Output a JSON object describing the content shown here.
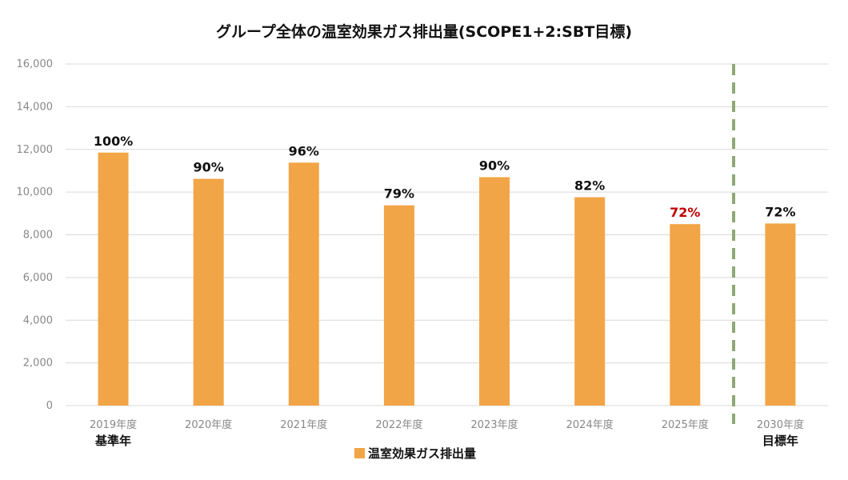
{
  "chart_data": {
    "type": "bar",
    "title": "グループ全体の温室効果ガス排出量(SCOPE1+2:SBT目標)",
    "categories": [
      "2019年度",
      "2020年度",
      "2021年度",
      "2022年度",
      "2023年度",
      "2024年度",
      "2025年度",
      "2030年度"
    ],
    "category_sublabels": [
      "基準年",
      "",
      "",
      "",
      "",
      "",
      "",
      "目標年"
    ],
    "series": [
      {
        "name": "温室効果ガス排出量",
        "values": [
          11850,
          10620,
          11380,
          9380,
          10700,
          9760,
          8500,
          8530
        ],
        "data_labels": [
          "100%",
          "90%",
          "96%",
          "79%",
          "90%",
          "82%",
          "72%",
          "72%"
        ]
      }
    ],
    "yticks": [
      "0",
      "2,000",
      "4,000",
      "6,000",
      "8,000",
      "10,000",
      "12,000",
      "14,000",
      "16,000"
    ],
    "ylim": [
      0,
      16000
    ],
    "xlabel": "",
    "ylabel": "",
    "grid": true,
    "legend_position": "bottom",
    "divider": "dashed line between 2025年度 and 2030年度",
    "colors": {
      "bar": "#F2A546",
      "grid": "#D9D9D9",
      "axis_text": "#888888",
      "label_text": "#111111",
      "highlight_label": "#C00000",
      "divider": "#8FA876"
    },
    "highlight_label_index": 6
  }
}
